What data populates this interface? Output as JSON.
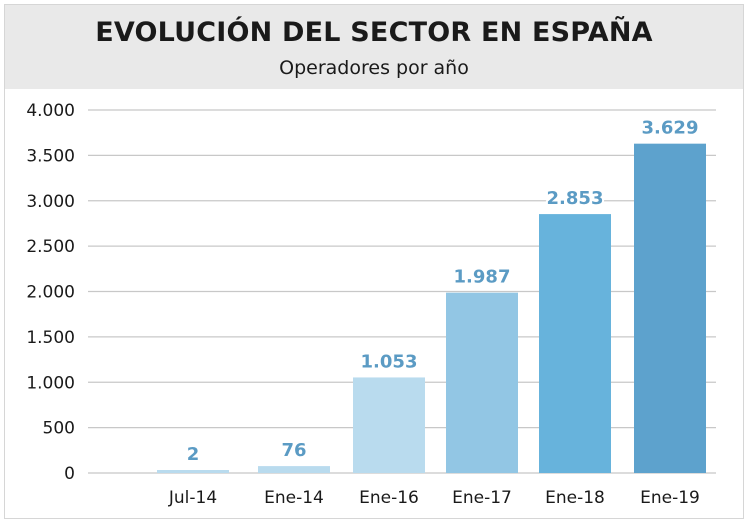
{
  "chart_data": {
    "type": "bar",
    "title": "EVOLUCIÓN DEL SECTOR EN ESPAÑA",
    "subtitle": "Operadores por año",
    "categories": [
      "Jul-14",
      "Ene-14",
      "Ene-16",
      "Ene-17",
      "Ene-18",
      "Ene-19"
    ],
    "values": [
      2,
      76,
      1053,
      1987,
      2853,
      3629
    ],
    "data_labels": [
      "2",
      "76",
      "1.053",
      "1.987",
      "2.853",
      "3.629"
    ],
    "ylim": [
      0,
      4000
    ],
    "yticks": [
      0,
      500,
      1000,
      1500,
      2000,
      2500,
      3000,
      3500,
      4000
    ],
    "ytick_labels": [
      "0",
      "500",
      "1.000",
      "1.500",
      "2.000",
      "2.500",
      "3.000",
      "3.500",
      "4.000"
    ],
    "xlabel": "",
    "ylabel": "",
    "grid": true,
    "legend": "none",
    "bar_colors": [
      "#b9dbee",
      "#b9dbee",
      "#b9dbee",
      "#92c6e4",
      "#67b3dc",
      "#5da2cd"
    ],
    "label_color": "#5b9bc4",
    "label_outline": "#ffffff",
    "grid_color": "#c8c8c8"
  }
}
